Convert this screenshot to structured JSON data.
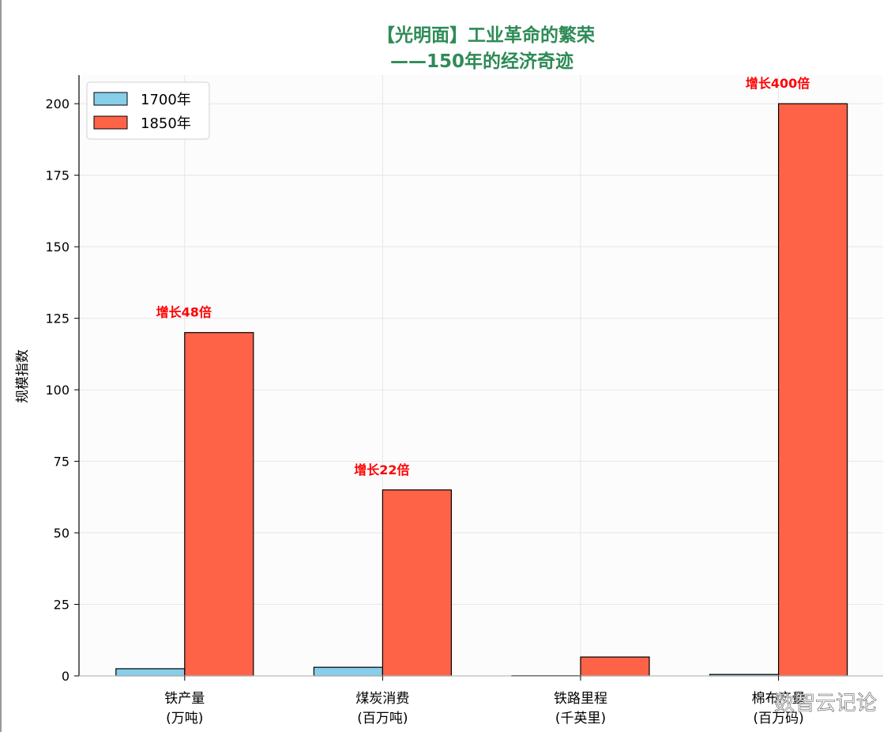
{
  "title_line1": "【光明面】工业革命的繁荣",
  "title_line2": "——150年的经济奇迹",
  "watermark": "数智云记论",
  "colors": {
    "title": "#2e8b57",
    "bar_1700": "#87ceeb",
    "bar_1850": "#ff6347",
    "annotation": "#ff0000",
    "plot_bg": "#fcfcfc",
    "grid": "#e6e6e6"
  },
  "chart_data": {
    "type": "bar",
    "title": "【光明面】工业革命的繁荣\n——150年的经济奇迹",
    "ylabel": "规模指数",
    "xlabel": "",
    "ylim": [
      0,
      210
    ],
    "yticks": [
      0,
      25,
      50,
      75,
      100,
      125,
      150,
      175,
      200
    ],
    "grid": true,
    "legend_position": "upper-left",
    "categories": [
      [
        "铁产量",
        "(万吨)"
      ],
      [
        "煤炭消费",
        "(百万吨)"
      ],
      [
        "铁路里程",
        "(千英里)"
      ],
      [
        "棉布产量",
        "(百万码)"
      ]
    ],
    "series": [
      {
        "name": "1700年",
        "values": [
          2.5,
          3,
          0.1,
          0.5
        ]
      },
      {
        "name": "1850年",
        "values": [
          120,
          65,
          6.6,
          200
        ]
      }
    ],
    "annotations": [
      {
        "category_index": 0,
        "text": "增长48倍"
      },
      {
        "category_index": 1,
        "text": "增长22倍"
      },
      {
        "category_index": 3,
        "text": "增长400倍"
      }
    ]
  }
}
